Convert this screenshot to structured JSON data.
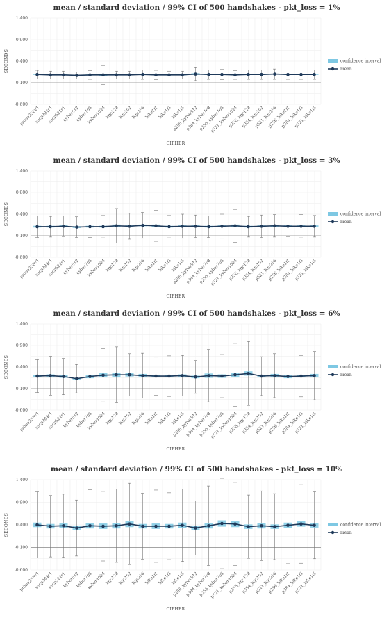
{
  "colors": {
    "ci": "#7ec8e3",
    "mean": "#1f3a5a",
    "errorbar": "#777777",
    "grid": "#ececec"
  },
  "chart_data": [
    {
      "type": "line",
      "title": "mean / standard deviation / 99% CI of 500 handshakes -  pkt_loss = 1%",
      "xlabel": "CIPHER",
      "ylabel": "SECONDS",
      "ylim": [
        -0.6,
        1.4
      ],
      "yticks": [
        "1.400",
        "0.900",
        "0.400",
        "-0.100",
        "-0.600"
      ],
      "hline": -0.1,
      "grid": true,
      "legend": {
        "position": "right",
        "ci_label": "confidence interval",
        "mean_label": "mean"
      },
      "categories": [
        "prime256v1",
        "secp384r1",
        "secp521r1",
        "kyber512",
        "kyber768",
        "kyber1024",
        "hqc128",
        "hqc192",
        "hqc256",
        "bike1l1",
        "bike1l3",
        "bike1l5",
        "p256_kyber512",
        "p384_kyber768",
        "p256_kyber768",
        "p521_kyber1024",
        "p256_hqc128",
        "p384_hqc192",
        "p521_hqc256",
        "p256_bike1l1",
        "p384_bike1l3",
        "p521_bike1l5"
      ],
      "mean": [
        0.09,
        0.08,
        0.08,
        0.07,
        0.08,
        0.08,
        0.08,
        0.08,
        0.09,
        0.08,
        0.08,
        0.08,
        0.1,
        0.09,
        0.09,
        0.08,
        0.09,
        0.09,
        0.1,
        0.09,
        0.09,
        0.09
      ],
      "sd": [
        0.1,
        0.09,
        0.09,
        0.08,
        0.1,
        0.22,
        0.09,
        0.09,
        0.11,
        0.11,
        0.09,
        0.09,
        0.15,
        0.11,
        0.12,
        0.1,
        0.11,
        0.11,
        0.12,
        0.11,
        0.11,
        0.11
      ],
      "ci": [
        0.01,
        0.01,
        0.01,
        0.01,
        0.01,
        0.03,
        0.01,
        0.01,
        0.01,
        0.01,
        0.01,
        0.01,
        0.02,
        0.01,
        0.01,
        0.01,
        0.01,
        0.01,
        0.01,
        0.01,
        0.01,
        0.01
      ]
    },
    {
      "type": "line",
      "title": "mean / standard deviation / 99% CI of 500 handshakes -  pkt_loss = 3%",
      "xlabel": "CIPHER",
      "ylabel": "SECONDS",
      "ylim": [
        -0.6,
        1.4
      ],
      "yticks": [
        "1.400",
        "0.900",
        "0.400",
        "-0.100",
        "-0.600"
      ],
      "hline": -0.1,
      "grid": true,
      "legend": {
        "position": "right",
        "ci_label": "confidence interval",
        "mean_label": "mean"
      },
      "categories": [
        "prime256v1",
        "secp384r1",
        "secp521r1",
        "kyber512",
        "kyber768",
        "kyber1024",
        "hqc128",
        "hqc192",
        "hqc256",
        "bike1l1",
        "bike1l3",
        "bike1l5",
        "p256_kyber512",
        "p384_kyber768",
        "p256_kyber768",
        "p521_kyber1024",
        "p256_hqc128",
        "p384_hqc192",
        "p521_hqc256",
        "p256_bike1l1",
        "p384_bike1l3",
        "p521_bike1l5"
      ],
      "mean": [
        0.11,
        0.11,
        0.12,
        0.1,
        0.11,
        0.11,
        0.13,
        0.12,
        0.14,
        0.13,
        0.11,
        0.12,
        0.12,
        0.11,
        0.12,
        0.13,
        0.11,
        0.12,
        0.13,
        0.12,
        0.12,
        0.12
      ],
      "sd": [
        0.25,
        0.24,
        0.24,
        0.24,
        0.25,
        0.26,
        0.4,
        0.3,
        0.3,
        0.36,
        0.26,
        0.28,
        0.26,
        0.25,
        0.28,
        0.38,
        0.24,
        0.26,
        0.26,
        0.24,
        0.27,
        0.25
      ],
      "ci": [
        0.02,
        0.02,
        0.02,
        0.02,
        0.02,
        0.02,
        0.03,
        0.02,
        0.02,
        0.03,
        0.02,
        0.02,
        0.02,
        0.02,
        0.02,
        0.03,
        0.02,
        0.02,
        0.02,
        0.02,
        0.02,
        0.02
      ]
    },
    {
      "type": "line",
      "title": "mean / standard deviation / 99% CI of 500 handshakes -  pkt_loss = 6%",
      "xlabel": "CIPHER",
      "ylabel": "SECONDS",
      "ylim": [
        -0.6,
        1.4
      ],
      "yticks": [
        "1.400",
        "0.900",
        "0.400",
        "-0.100",
        "-0.600"
      ],
      "hline": -0.1,
      "grid": true,
      "legend": {
        "position": "right",
        "ci_label": "confidence interval",
        "mean_label": "mean"
      },
      "categories": [
        "prime256v1",
        "secp384r1",
        "secp521r1",
        "kyber512",
        "kyber768",
        "kyber1024",
        "hqc128",
        "hqc192",
        "hqc256",
        "bike1l1",
        "bike1l3",
        "bike1l5",
        "p256_kyber512",
        "p384_kyber768",
        "p256_kyber768",
        "p521_kyber1024",
        "p256_hqc128",
        "p384_hqc192",
        "p521_hqc256",
        "p256_bike1l1",
        "p384_bike1l3",
        "p521_bike1l5"
      ],
      "mean": [
        0.19,
        0.2,
        0.18,
        0.13,
        0.18,
        0.21,
        0.22,
        0.22,
        0.2,
        0.19,
        0.19,
        0.2,
        0.17,
        0.2,
        0.19,
        0.22,
        0.25,
        0.19,
        0.2,
        0.18,
        0.19,
        0.2
      ],
      "sd": [
        0.38,
        0.45,
        0.42,
        0.33,
        0.5,
        0.62,
        0.65,
        0.49,
        0.52,
        0.44,
        0.47,
        0.47,
        0.38,
        0.61,
        0.5,
        0.73,
        0.74,
        0.45,
        0.51,
        0.5,
        0.48,
        0.56
      ],
      "ci": [
        0.03,
        0.03,
        0.03,
        0.02,
        0.04,
        0.05,
        0.05,
        0.04,
        0.04,
        0.03,
        0.03,
        0.03,
        0.03,
        0.05,
        0.04,
        0.05,
        0.05,
        0.03,
        0.04,
        0.04,
        0.03,
        0.04
      ]
    },
    {
      "type": "line",
      "title": "mean / standard deviation / 99% CI of 500 handshakes -  pkt_loss = 10%",
      "xlabel": "CIPHER",
      "ylabel": "SECONDS",
      "ylim": [
        -0.6,
        1.4
      ],
      "yticks": [
        "1.400",
        "0.900",
        "0.400",
        "-0.100",
        "-0.600"
      ],
      "hline": -0.1,
      "grid": true,
      "legend": {
        "position": "right",
        "ci_label": "confidence interval",
        "mean_label": "mean"
      },
      "categories": [
        "prime256v1",
        "secp384r1",
        "secp521r1",
        "kyber512",
        "kyber768",
        "kyber1024",
        "hqc128",
        "hqc192",
        "hqc256",
        "bike1l1",
        "bike1l3",
        "bike1l5",
        "p256_kyber512",
        "p384_kyber768",
        "p256_kyber768",
        "p521_kyber1024",
        "p256_hqc128",
        "p384_hqc192",
        "p521_hqc256",
        "p256_bike1l1",
        "p384_bike1l3",
        "p521_bike1l5"
      ],
      "mean": [
        0.4,
        0.37,
        0.38,
        0.33,
        0.38,
        0.37,
        0.38,
        0.42,
        0.37,
        0.37,
        0.37,
        0.39,
        0.33,
        0.38,
        0.43,
        0.42,
        0.36,
        0.38,
        0.36,
        0.39,
        0.42,
        0.39
      ],
      "sd": [
        0.73,
        0.68,
        0.7,
        0.62,
        0.8,
        0.77,
        0.81,
        0.9,
        0.73,
        0.8,
        0.74,
        0.8,
        0.6,
        0.88,
        1.0,
        0.92,
        0.7,
        0.77,
        0.73,
        0.85,
        0.87,
        0.74
      ],
      "ci": [
        0.05,
        0.05,
        0.05,
        0.04,
        0.06,
        0.06,
        0.06,
        0.07,
        0.05,
        0.06,
        0.05,
        0.06,
        0.04,
        0.06,
        0.07,
        0.07,
        0.05,
        0.06,
        0.05,
        0.06,
        0.06,
        0.05
      ]
    }
  ]
}
